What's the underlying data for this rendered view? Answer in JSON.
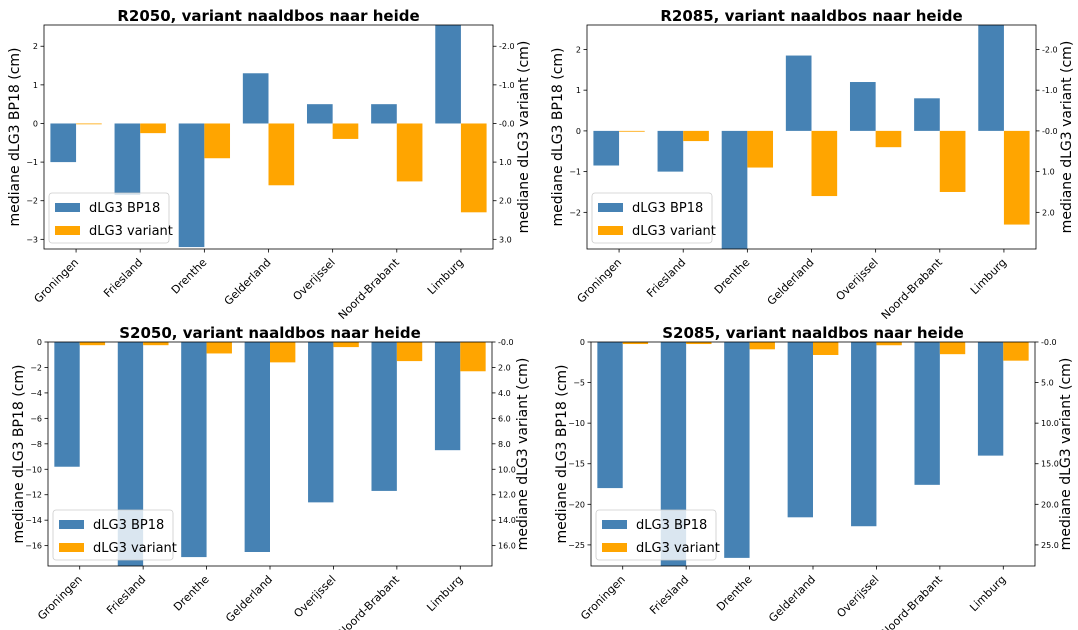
{
  "colors": {
    "bp18": "#4682b4",
    "variant": "#ffa500"
  },
  "chart_data": [
    {
      "type": "bar",
      "title": "R2050, variant naaldbos naar heide",
      "ylabel_left": "mediane dLG3 BP18 (cm)",
      "ylabel_right": "mediane dLG3 variant (cm)",
      "categories": [
        "Groningen",
        "Friesland",
        "Drenthe",
        "Gelderland",
        "Overijssel",
        "Noord-Brabant",
        "Limburg"
      ],
      "series": [
        {
          "name": "dLG3 BP18",
          "axis": "left",
          "values": [
            -1.0,
            -1.85,
            -3.2,
            1.3,
            0.5,
            0.5,
            2.55
          ]
        },
        {
          "name": "dLG3 variant",
          "axis": "right",
          "values": [
            0.0,
            0.25,
            0.9,
            1.6,
            0.4,
            1.5,
            2.3
          ]
        }
      ],
      "ylim_left": [
        -3.25,
        2.55
      ],
      "yticks_left": [
        {
          "v": 2,
          "label": "2"
        },
        {
          "v": 1,
          "label": "1"
        },
        {
          "v": 0,
          "label": "0"
        },
        {
          "v": -1,
          "label": "−1"
        },
        {
          "v": -2,
          "label": "−2"
        },
        {
          "v": -3,
          "label": "−3"
        }
      ],
      "ylim_right": [
        -2.55,
        3.25
      ],
      "right_inverted": true,
      "yticks_right": [
        {
          "v": -2,
          "label": "-2.0"
        },
        {
          "v": -1,
          "label": "-1.0"
        },
        {
          "v": 0,
          "label": "-0.0"
        },
        {
          "v": 1,
          "label": "1.0"
        },
        {
          "v": 2,
          "label": "2.0"
        },
        {
          "v": 3,
          "label": "3.0"
        }
      ],
      "legend": "lower-left"
    },
    {
      "type": "bar",
      "title": "R2085, variant naaldbos naar heide",
      "ylabel_left": "mediane dLG3 BP18 (cm)",
      "ylabel_right": "mediane dLG3 variant (cm)",
      "categories": [
        "Groningen",
        "Friesland",
        "Drenthe",
        "Gelderland",
        "Overijssel",
        "Noord-Brabant",
        "Limburg"
      ],
      "series": [
        {
          "name": "dLG3 BP18",
          "axis": "left",
          "values": [
            -0.85,
            -1.0,
            -2.9,
            1.85,
            1.2,
            0.8,
            2.6
          ]
        },
        {
          "name": "dLG3 variant",
          "axis": "right",
          "values": [
            0.0,
            0.25,
            0.9,
            1.6,
            0.4,
            1.5,
            2.3
          ]
        }
      ],
      "ylim_left": [
        -2.9,
        2.6
      ],
      "yticks_left": [
        {
          "v": 2,
          "label": "2"
        },
        {
          "v": 1,
          "label": "1"
        },
        {
          "v": 0,
          "label": "0"
        },
        {
          "v": -1,
          "label": "−1"
        },
        {
          "v": -2,
          "label": "−2"
        }
      ],
      "ylim_right": [
        -2.6,
        2.9
      ],
      "right_inverted": true,
      "yticks_right": [
        {
          "v": -2,
          "label": "-2.0"
        },
        {
          "v": -1,
          "label": "-1.0"
        },
        {
          "v": 0,
          "label": "-0.0"
        },
        {
          "v": 1,
          "label": "1.0"
        },
        {
          "v": 2,
          "label": "2.0"
        }
      ],
      "legend": "lower-left"
    },
    {
      "type": "bar",
      "title": "S2050, variant naaldbos naar heide",
      "ylabel_left": "mediane dLG3 BP18 (cm)",
      "ylabel_right": "mediane dLG3 variant (cm)",
      "categories": [
        "Groningen",
        "Friesland",
        "Drenthe",
        "Gelderland",
        "Overijssel",
        "Noord-Brabant",
        "Limburg"
      ],
      "series": [
        {
          "name": "dLG3 BP18",
          "axis": "left",
          "values": [
            -9.8,
            -17.6,
            -16.9,
            -16.5,
            -12.6,
            -11.7,
            -8.5
          ]
        },
        {
          "name": "dLG3 variant",
          "axis": "right",
          "values": [
            0.25,
            0.25,
            0.9,
            1.6,
            0.4,
            1.5,
            2.3
          ]
        }
      ],
      "ylim_left": [
        -17.6,
        0
      ],
      "yticks_left": [
        {
          "v": 0,
          "label": "0"
        },
        {
          "v": -2,
          "label": "−2"
        },
        {
          "v": -4,
          "label": "−4"
        },
        {
          "v": -6,
          "label": "−6"
        },
        {
          "v": -8,
          "label": "−8"
        },
        {
          "v": -10,
          "label": "−10"
        },
        {
          "v": -12,
          "label": "−12"
        },
        {
          "v": -14,
          "label": "−14"
        },
        {
          "v": -16,
          "label": "−16"
        }
      ],
      "ylim_right": [
        0,
        17.6
      ],
      "right_inverted": true,
      "yticks_right": [
        {
          "v": 0,
          "label": "-0.0"
        },
        {
          "v": 2,
          "label": "2.0"
        },
        {
          "v": 4,
          "label": "4.0"
        },
        {
          "v": 6,
          "label": "6.0"
        },
        {
          "v": 8,
          "label": "8.0"
        },
        {
          "v": 10,
          "label": "10.0"
        },
        {
          "v": 12,
          "label": "12.0"
        },
        {
          "v": 14,
          "label": "14.0"
        },
        {
          "v": 16,
          "label": "16.0"
        }
      ],
      "legend": "lower-left"
    },
    {
      "type": "bar",
      "title": "S2085, variant naaldbos naar heide",
      "ylabel_left": "mediane dLG3 BP18 (cm)",
      "ylabel_right": "mediane dLG3 variant (cm)",
      "categories": [
        "Groningen",
        "Friesland",
        "Drenthe",
        "Gelderland",
        "Overijssel",
        "Noord-Brabant",
        "Limburg"
      ],
      "series": [
        {
          "name": "dLG3 BP18",
          "axis": "left",
          "values": [
            -18.0,
            -27.6,
            -26.6,
            -21.6,
            -22.7,
            -17.6,
            -14.0
          ]
        },
        {
          "name": "dLG3 variant",
          "axis": "right",
          "values": [
            0.25,
            0.25,
            0.9,
            1.6,
            0.4,
            1.5,
            2.3
          ]
        }
      ],
      "ylim_left": [
        -27.6,
        0
      ],
      "yticks_left": [
        {
          "v": 0,
          "label": "0"
        },
        {
          "v": -5,
          "label": "−5"
        },
        {
          "v": -10,
          "label": "−10"
        },
        {
          "v": -15,
          "label": "−15"
        },
        {
          "v": -20,
          "label": "−20"
        },
        {
          "v": -25,
          "label": "−25"
        }
      ],
      "ylim_right": [
        0,
        27.6
      ],
      "right_inverted": true,
      "yticks_right": [
        {
          "v": 0,
          "label": "-0.0"
        },
        {
          "v": 5,
          "label": "5.0"
        },
        {
          "v": 10,
          "label": "10.0"
        },
        {
          "v": 15,
          "label": "15.0"
        },
        {
          "v": 20,
          "label": "20.0"
        },
        {
          "v": 25,
          "label": "25.0"
        }
      ],
      "legend": "lower-left"
    }
  ]
}
